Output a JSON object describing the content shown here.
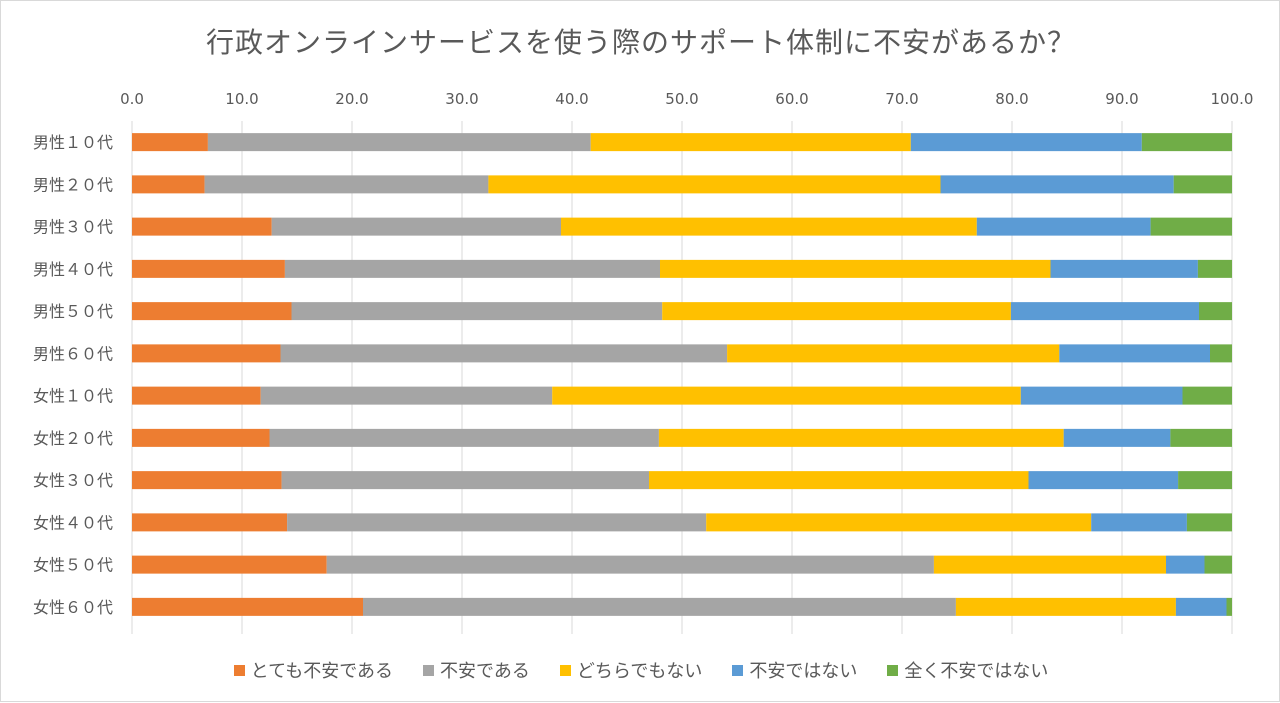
{
  "chart_data": {
    "type": "bar",
    "orientation": "horizontal",
    "stacked": true,
    "title": "行政オンラインサービスを使う際のサポート体制に不安があるか？",
    "xlim": [
      0,
      100
    ],
    "xticks": [
      "0.0",
      "10.0",
      "20.0",
      "30.0",
      "40.0",
      "50.0",
      "60.0",
      "70.0",
      "80.0",
      "90.0",
      "100.0"
    ],
    "x_axis_position": "top",
    "grid": "vertical",
    "legend_position": "bottom",
    "categories": [
      "男性１０代",
      "男性２０代",
      "男性３０代",
      "男性４０代",
      "男性５０代",
      "男性６０代",
      "女性１０代",
      "女性２０代",
      "女性３０代",
      "女性４０代",
      "女性５０代",
      "女性６０代"
    ],
    "series": [
      {
        "name": "とても不安である",
        "color": "#ed7d31",
        "values": [
          6.9,
          6.6,
          12.7,
          13.9,
          14.5,
          13.5,
          11.7,
          12.5,
          13.6,
          14.1,
          17.7,
          21.0
        ]
      },
      {
        "name": "不安である",
        "color": "#a5a5a5",
        "values": [
          34.8,
          25.8,
          26.3,
          34.1,
          33.7,
          40.6,
          26.5,
          35.4,
          33.4,
          38.1,
          55.2,
          53.9
        ]
      },
      {
        "name": "どちらでもない",
        "color": "#ffc000",
        "values": [
          29.1,
          41.1,
          37.8,
          35.5,
          31.7,
          30.2,
          42.6,
          36.8,
          34.5,
          35.0,
          21.1,
          20.0
        ]
      },
      {
        "name": "不安ではない",
        "color": "#5b9bd5",
        "values": [
          21.0,
          21.2,
          15.8,
          13.4,
          17.1,
          13.7,
          14.7,
          9.7,
          13.6,
          8.7,
          3.5,
          4.6
        ]
      },
      {
        "name": "全く不安ではない",
        "color": "#70ad47",
        "values": [
          8.2,
          5.3,
          7.4,
          3.1,
          3.0,
          2.0,
          4.5,
          5.6,
          4.9,
          4.1,
          2.5,
          0.5
        ]
      }
    ]
  }
}
